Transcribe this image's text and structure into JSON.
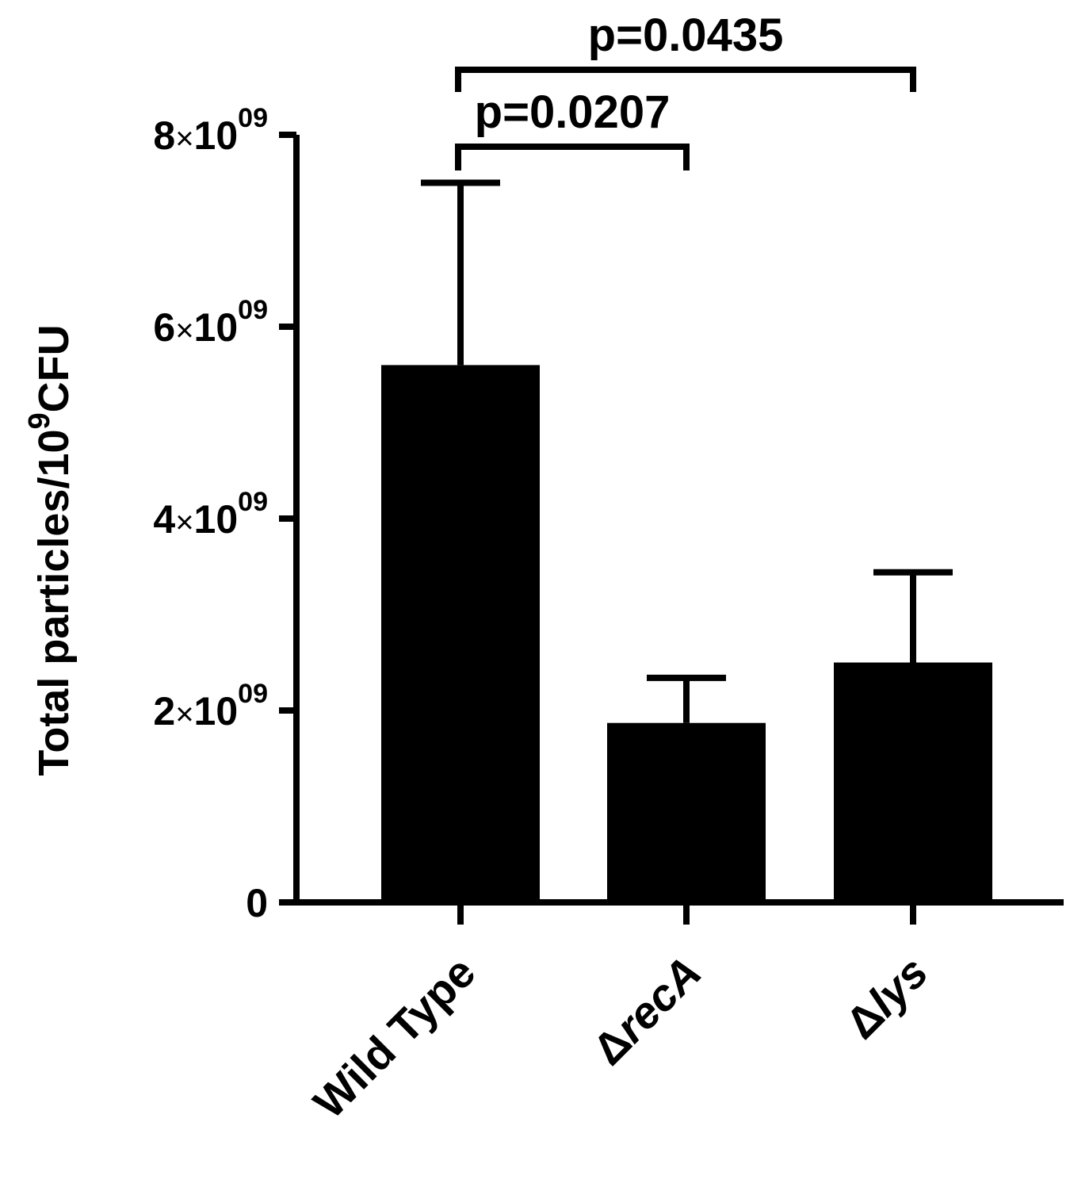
{
  "chart_data": {
    "type": "bar",
    "title": "",
    "xlabel": "",
    "ylabel": {
      "prefix": "Total particles/10",
      "superscript": "9",
      "suffix": "CFU"
    },
    "categories": [
      {
        "prefix": "",
        "name": "Wild Type",
        "italic": false
      },
      {
        "prefix": "Δ",
        "name": "recA",
        "italic": true
      },
      {
        "prefix": "Δ",
        "name": "lys",
        "italic": true
      }
    ],
    "values": [
      5600000000,
      1870000000,
      2500000000
    ],
    "error_upper": [
      7500000000,
      2340000000,
      3440000000
    ],
    "ylim": [
      0,
      8000000000
    ],
    "yticks": [
      {
        "value": 0,
        "label": "0"
      },
      {
        "value": 2000000000,
        "mantissa": "2",
        "base": "10",
        "exponent": "09"
      },
      {
        "value": 4000000000,
        "mantissa": "4",
        "base": "10",
        "exponent": "09"
      },
      {
        "value": 6000000000,
        "mantissa": "6",
        "base": "10",
        "exponent": "09"
      },
      {
        "value": 8000000000,
        "mantissa": "8",
        "base": "10",
        "exponent": "09"
      }
    ],
    "times_symbol": "×",
    "significance": [
      {
        "from": 0,
        "to": 1,
        "label": "p=0.0207"
      },
      {
        "from": 0,
        "to": 2,
        "label": "p=0.0435"
      }
    ],
    "bar_color": "#000000",
    "grid": false,
    "legend": "none"
  }
}
